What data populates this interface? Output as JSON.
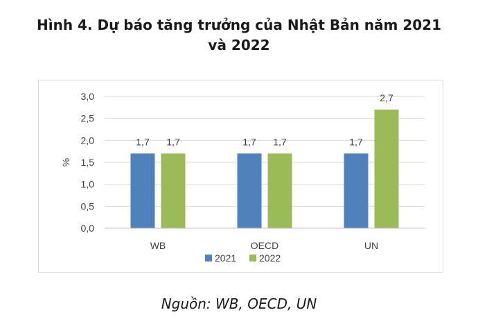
{
  "figure": {
    "title_line1": "Hình 4. Dự báo tăng trưởng của Nhật Bản năm 2021",
    "title_line2": "và 2022",
    "source": "Nguồn: WB, OECD, UN"
  },
  "chart_data": {
    "type": "bar",
    "categories": [
      "WB",
      "OECD",
      "UN"
    ],
    "series": [
      {
        "name": "2021",
        "values": [
          1.7,
          1.7,
          1.7
        ],
        "labels": [
          "1,7",
          "1,7",
          "1,7"
        ],
        "color": "#4f81bd"
      },
      {
        "name": "2022",
        "values": [
          1.7,
          1.7,
          2.7
        ],
        "labels": [
          "1,7",
          "1,7",
          "2,7"
        ],
        "color": "#9bbb59"
      }
    ],
    "ylabel": "%",
    "xlabel": "",
    "ylim": [
      0,
      3.0
    ],
    "yticks": [
      0,
      0.5,
      1.0,
      1.5,
      2.0,
      2.5,
      3.0
    ],
    "ytick_labels": [
      "0,0",
      "0,5",
      "1,0",
      "1,5",
      "2,0",
      "2,5",
      "3,0"
    ],
    "grid": true,
    "legend_position": "bottom"
  }
}
